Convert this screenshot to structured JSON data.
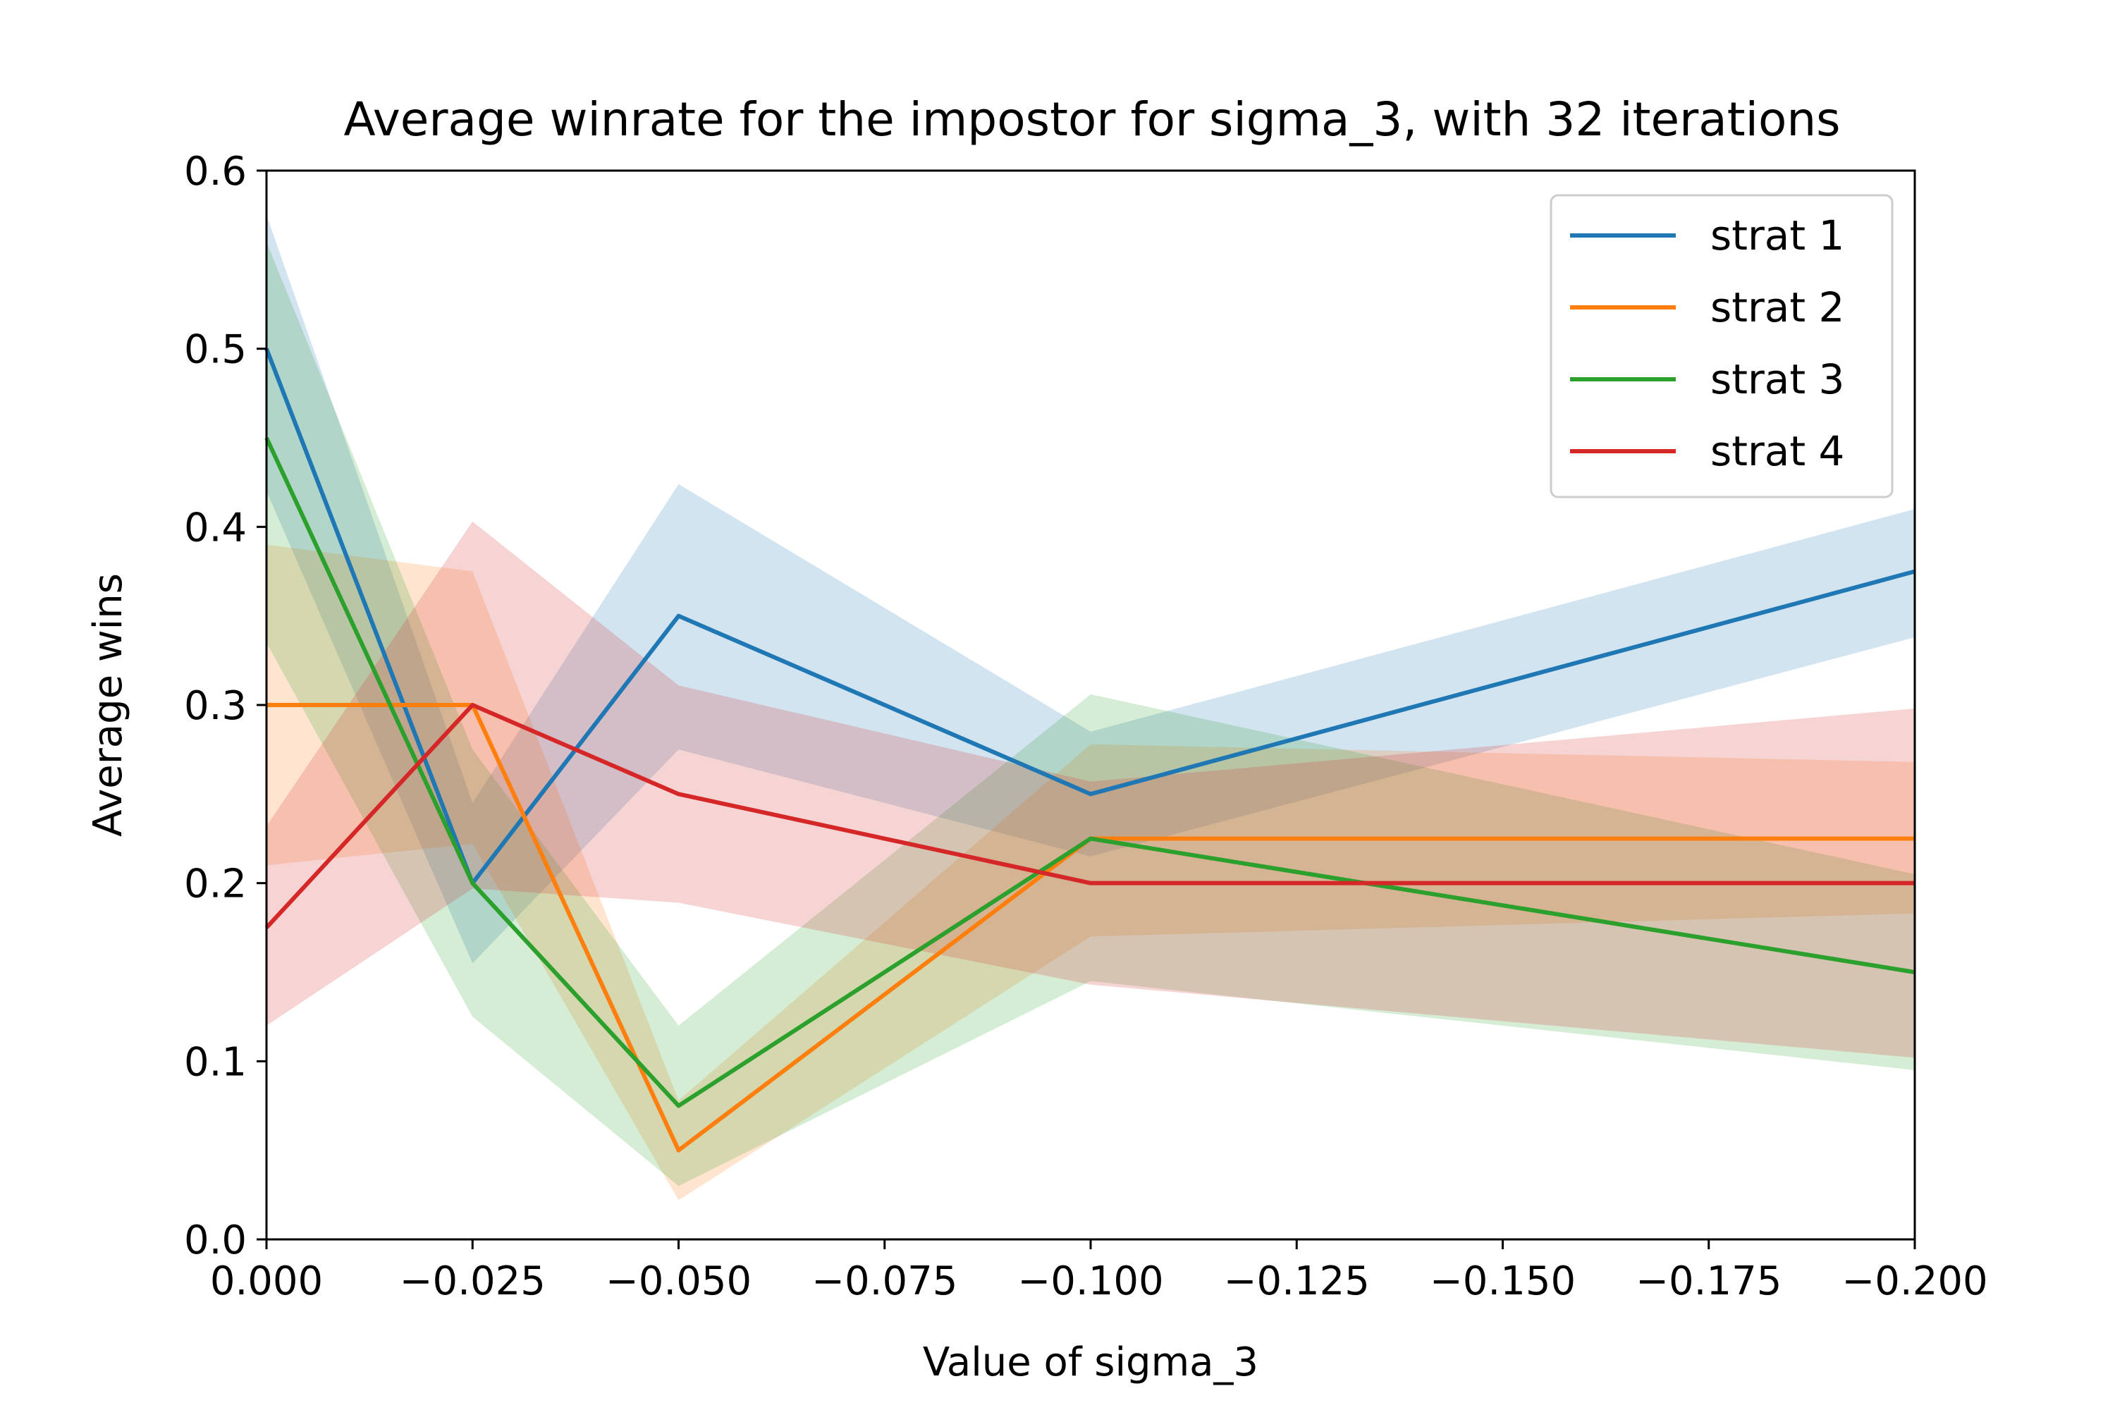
{
  "chart_data": {
    "type": "line",
    "title": "Average winrate for the impostor for sigma_3, with 32 iterations",
    "xlabel": "Value of sigma_3",
    "ylabel": "Average wins",
    "x_categories": [
      0,
      -0.025,
      -0.05,
      -0.1,
      -0.2
    ],
    "x_ticks": [
      0.0,
      -0.025,
      -0.05,
      -0.075,
      -0.1,
      -0.125,
      -0.15,
      -0.175,
      -0.2
    ],
    "x_tick_labels": [
      "0.000",
      "−0.025",
      "−0.050",
      "−0.075",
      "−0.100",
      "−0.125",
      "−0.150",
      "−0.175",
      "−0.200"
    ],
    "xlim": [
      0.0,
      -0.2
    ],
    "ylim": [
      0.0,
      0.6
    ],
    "y_ticks": [
      0.0,
      0.1,
      0.2,
      0.3,
      0.4,
      0.5,
      0.6
    ],
    "y_tick_labels": [
      "0.0",
      "0.1",
      "0.2",
      "0.3",
      "0.4",
      "0.5",
      "0.6"
    ],
    "legend_position": "top-right",
    "grid": false,
    "series": [
      {
        "name": "strat 1",
        "color": "#1f77b4",
        "values": [
          0.5,
          0.2,
          0.35,
          0.25,
          0.375
        ],
        "band_low": [
          0.42,
          0.155,
          0.275,
          0.215,
          0.338
        ],
        "band_high": [
          0.575,
          0.245,
          0.424,
          0.285,
          0.41
        ]
      },
      {
        "name": "strat 2",
        "color": "#ff7f0e",
        "values": [
          0.3,
          0.3,
          0.05,
          0.225,
          0.225
        ],
        "band_low": [
          0.21,
          0.222,
          0.022,
          0.17,
          0.183
        ],
        "band_high": [
          0.39,
          0.375,
          0.078,
          0.278,
          0.268
        ]
      },
      {
        "name": "strat 3",
        "color": "#2ca02c",
        "values": [
          0.45,
          0.2,
          0.075,
          0.225,
          0.15
        ],
        "band_low": [
          0.335,
          0.125,
          0.03,
          0.145,
          0.095
        ],
        "band_high": [
          0.56,
          0.275,
          0.12,
          0.306,
          0.205
        ]
      },
      {
        "name": "strat 4",
        "color": "#d62728",
        "values": [
          0.175,
          0.3,
          0.25,
          0.2,
          0.2
        ],
        "band_low": [
          0.12,
          0.197,
          0.189,
          0.143,
          0.102
        ],
        "band_high": [
          0.232,
          0.403,
          0.311,
          0.257,
          0.298
        ]
      }
    ]
  }
}
